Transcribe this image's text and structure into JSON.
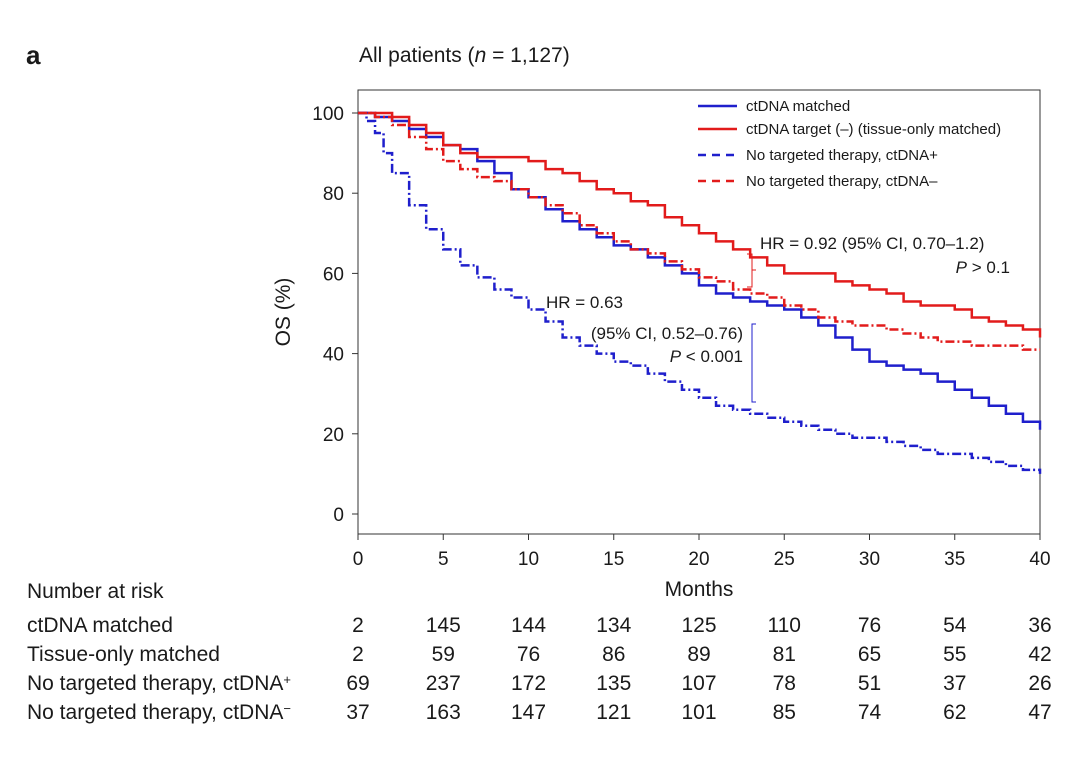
{
  "panel_label": "a",
  "chart_data": {
    "type": "line",
    "title_prefix": "All patients (",
    "title_n": "n",
    "title_suffix": " = 1,127)",
    "xlabel": "Months",
    "ylabel": "OS (%)",
    "xlim": [
      0,
      40
    ],
    "ylim": [
      0,
      100
    ],
    "xticks": [
      0,
      5,
      10,
      15,
      20,
      25,
      30,
      35,
      40
    ],
    "yticks": [
      0,
      20,
      40,
      60,
      80,
      100
    ],
    "grid": false,
    "legend_position": "top-right",
    "series": [
      {
        "name": "ctDNA matched",
        "color": "#1f1fcc",
        "style": "solid",
        "x": [
          0,
          1,
          2,
          3,
          4,
          5,
          6,
          7,
          8,
          9,
          10,
          11,
          12,
          13,
          14,
          15,
          16,
          17,
          18,
          19,
          20,
          21,
          22,
          23,
          24,
          25,
          26,
          27,
          28,
          29,
          30,
          31,
          32,
          33,
          34,
          35,
          36,
          37,
          38,
          39,
          40
        ],
        "y": [
          100,
          99,
          98,
          96,
          94,
          92,
          91,
          88,
          85,
          81,
          79,
          76,
          73,
          71,
          69,
          67,
          66,
          64,
          62,
          60,
          57,
          55,
          54,
          53,
          52,
          51,
          49,
          47,
          44,
          41,
          38,
          37,
          36,
          35,
          33,
          31,
          29,
          27,
          25,
          23,
          21
        ]
      },
      {
        "name": "ctDNA target (–) (tissue-only matched)",
        "color": "#e21b1b",
        "style": "solid",
        "x": [
          0,
          1,
          2,
          3,
          4,
          5,
          6,
          7,
          8,
          9,
          10,
          11,
          12,
          13,
          14,
          15,
          16,
          17,
          18,
          19,
          20,
          21,
          22,
          23,
          24,
          25,
          26,
          27,
          28,
          29,
          30,
          31,
          32,
          33,
          34,
          35,
          36,
          37,
          38,
          39,
          40
        ],
        "y": [
          100,
          100,
          99,
          97,
          95,
          92,
          90,
          89,
          89,
          89,
          88,
          86,
          85,
          83,
          81,
          80,
          78,
          77,
          74,
          72,
          70,
          68,
          66,
          64,
          62,
          60,
          60,
          60,
          58,
          57,
          56,
          55,
          53,
          52,
          52,
          51,
          49,
          48,
          47,
          46,
          44
        ]
      },
      {
        "name": "No targeted therapy, ctDNA+",
        "color": "#1f1fcc",
        "style": "dashed",
        "x": [
          0,
          0.5,
          1,
          1.5,
          2,
          3,
          4,
          5,
          6,
          7,
          8,
          9,
          10,
          11,
          12,
          13,
          14,
          15,
          16,
          17,
          18,
          19,
          20,
          21,
          22,
          23,
          24,
          25,
          26,
          27,
          28,
          29,
          30,
          31,
          32,
          33,
          34,
          35,
          36,
          37,
          38,
          39,
          40
        ],
        "y": [
          100,
          98,
          95,
          90,
          85,
          77,
          71,
          66,
          62,
          59,
          56,
          54,
          51,
          48,
          44,
          42,
          40,
          38,
          37,
          35,
          33,
          31,
          29,
          27,
          26,
          25,
          24,
          23,
          22,
          21,
          20,
          19,
          19,
          18,
          17,
          16,
          15,
          15,
          14,
          13,
          12,
          11,
          10
        ]
      },
      {
        "name": "No targeted therapy, ctDNA–",
        "color": "#e21b1b",
        "style": "dashed",
        "x": [
          0,
          1,
          2,
          3,
          4,
          5,
          6,
          7,
          8,
          9,
          10,
          11,
          12,
          13,
          14,
          15,
          16,
          17,
          18,
          19,
          20,
          21,
          22,
          23,
          24,
          25,
          26,
          27,
          28,
          29,
          30,
          31,
          32,
          33,
          34,
          35,
          36,
          37,
          38,
          39,
          40
        ],
        "y": [
          100,
          99,
          97,
          94,
          91,
          88,
          86,
          84,
          83,
          81,
          79,
          77,
          75,
          72,
          70,
          68,
          66,
          65,
          63,
          61,
          59,
          58,
          56,
          55,
          54,
          52,
          51,
          49,
          48,
          47,
          47,
          46,
          45,
          44,
          43,
          43,
          42,
          42,
          42,
          41,
          41
        ]
      }
    ],
    "annotations": {
      "hr_top_line1": "HR = 0.92 (95% CI, 0.70–1.2)",
      "hr_top_p_letter": "P",
      "hr_top_p_rest": " > 0.1",
      "hr_bottom_line1": "HR = 0.63",
      "hr_bottom_line2": "(95% CI, 0.52–0.76)",
      "hr_bottom_p_letter": "P",
      "hr_bottom_p_rest": " < 0.001"
    }
  },
  "risk_table": {
    "title": "Number at risk",
    "times": [
      0,
      5,
      10,
      15,
      20,
      25,
      30,
      35,
      40
    ],
    "rows": [
      {
        "label": "ctDNA matched",
        "sup": "",
        "values": [
          "2",
          "145",
          "144",
          "134",
          "125",
          "110",
          "76",
          "54",
          "36"
        ]
      },
      {
        "label": "Tissue-only matched",
        "sup": "",
        "values": [
          "2",
          "59",
          "76",
          "86",
          "89",
          "81",
          "65",
          "55",
          "42"
        ]
      },
      {
        "label": "No targeted therapy, ctDNA",
        "sup": "+",
        "values": [
          "69",
          "237",
          "172",
          "135",
          "107",
          "78",
          "51",
          "37",
          "26"
        ]
      },
      {
        "label": "No targeted therapy, ctDNA",
        "sup": "−",
        "values": [
          "37",
          "163",
          "147",
          "121",
          "101",
          "85",
          "74",
          "62",
          "47"
        ]
      }
    ]
  }
}
